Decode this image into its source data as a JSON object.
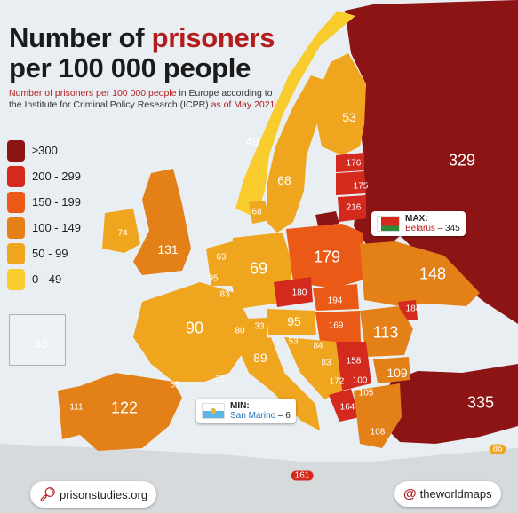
{
  "title": {
    "line1_plain": "Number of ",
    "line1_accent": "prisoners",
    "line2": "per 100 000 people"
  },
  "subtitle": {
    "part1": "Number of prisoners per 100 000 people",
    "part2": " in Europe according to the Institute for Criminal Policy Research (ICPR) ",
    "part3": "as of May 2021"
  },
  "legend": [
    {
      "label": "≥300",
      "color": "#8c1414"
    },
    {
      "label": "200 - 299",
      "color": "#d42a1e"
    },
    {
      "label": "150 - 199",
      "color": "#ea5a16"
    },
    {
      "label": "100 - 149",
      "color": "#e48018"
    },
    {
      "label": "50 - 99",
      "color": "#efa61e"
    },
    {
      "label": "0 - 49",
      "color": "#f7cc2c"
    }
  ],
  "values": {
    "russia": "329",
    "turkey": "335",
    "norway": "49",
    "sweden": "68",
    "finland": "53",
    "estonia": "176",
    "latvia": "175",
    "lithuania": "216",
    "denmark": "68",
    "uk": "131",
    "ireland": "74",
    "poland": "179",
    "ukraine": "148",
    "germany": "69",
    "netherlands": "63",
    "belgium": "95",
    "luxembourg": "83",
    "france": "90",
    "switzerland": "80",
    "liechtenstein": "33",
    "austria": "95",
    "czechia": "180",
    "slovakia": "194",
    "hungary": "169",
    "moldova": "184",
    "romania": "113",
    "italy": "89",
    "slovenia": "53",
    "croatia": "84",
    "bosnia": "83",
    "serbia": "158",
    "montenegro": "172",
    "kosovo": "100",
    "north_macedonia": "105",
    "bulgaria": "109",
    "albania": "164",
    "greece": "108",
    "spain": "122",
    "portugal": "111",
    "andorra": "55",
    "monaco": "21",
    "malta": "161",
    "cyprus": "86",
    "iceland": "33"
  },
  "max_callout": {
    "heading": "MAX:",
    "country": "Belarus",
    "value": "– 345"
  },
  "min_callout": {
    "heading": "MIN:",
    "country": "San Marino",
    "value": "– 6"
  },
  "footer": {
    "left": "prisonstudies.org",
    "right": "theworldmaps"
  }
}
